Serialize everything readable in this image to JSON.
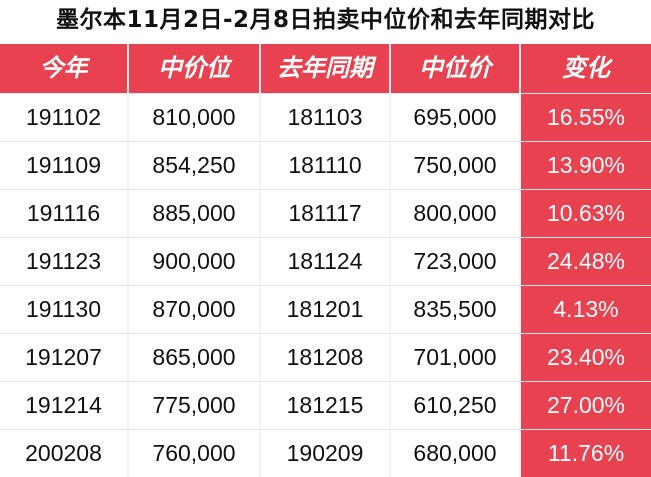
{
  "page": {
    "title": "墨尔本11月2日-2月8日拍卖中位价和去年同期对比"
  },
  "colors": {
    "accent_red": "#e8414f",
    "header_text": "#ffffff",
    "body_text": "#111111"
  },
  "chart_data": {
    "type": "table",
    "title": "墨尔本11月2日-2月8日拍卖中位价和去年同期对比",
    "columns": [
      "今年",
      "中价位",
      "去年同期",
      "中位价",
      "变化"
    ],
    "rows": [
      [
        "191102",
        "810,000",
        "181103",
        "695,000",
        "16.55%"
      ],
      [
        "191109",
        "854,250",
        "181110",
        "750,000",
        "13.90%"
      ],
      [
        "191116",
        "885,000",
        "181117",
        "800,000",
        "10.63%"
      ],
      [
        "191123",
        "900,000",
        "181124",
        "723,000",
        "24.48%"
      ],
      [
        "191130",
        "870,000",
        "181201",
        "835,500",
        "4.13%"
      ],
      [
        "191207",
        "865,000",
        "181208",
        "701,000",
        "23.40%"
      ],
      [
        "191214",
        "775,000",
        "181215",
        "610,250",
        "27.00%"
      ],
      [
        "200208",
        "760,000",
        "190209",
        "680,000",
        "11.76%"
      ]
    ]
  }
}
